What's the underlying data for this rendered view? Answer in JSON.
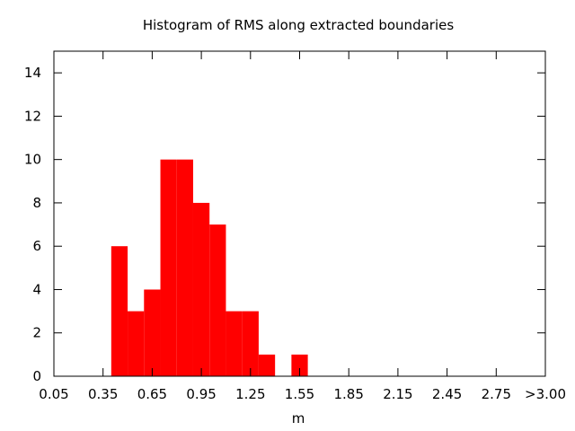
{
  "chart_data": {
    "type": "bar",
    "title": "Histogram of RMS along extracted boundaries",
    "xlabel": "m",
    "ylabel": "",
    "bin_width": 0.1,
    "xlim": [
      0.05,
      3.05
    ],
    "ylim": [
      0,
      15
    ],
    "xticks": [
      "0.05",
      "0.35",
      "0.65",
      "0.95",
      "1.25",
      "1.55",
      "1.85",
      "2.15",
      "2.45",
      "2.75",
      ">3.00"
    ],
    "yticks": [
      "0",
      "2",
      "4",
      "6",
      "8",
      "10",
      "12",
      "14"
    ],
    "bins": [
      {
        "x": 0.45,
        "value": 6
      },
      {
        "x": 0.55,
        "value": 3
      },
      {
        "x": 0.65,
        "value": 4
      },
      {
        "x": 0.75,
        "value": 10
      },
      {
        "x": 0.85,
        "value": 10
      },
      {
        "x": 0.95,
        "value": 8
      },
      {
        "x": 1.05,
        "value": 7
      },
      {
        "x": 1.15,
        "value": 3
      },
      {
        "x": 1.25,
        "value": 3
      },
      {
        "x": 1.35,
        "value": 1
      },
      {
        "x": 1.55,
        "value": 1
      }
    ],
    "bar_color": "#ff0000",
    "grid": false,
    "legend": "none"
  }
}
